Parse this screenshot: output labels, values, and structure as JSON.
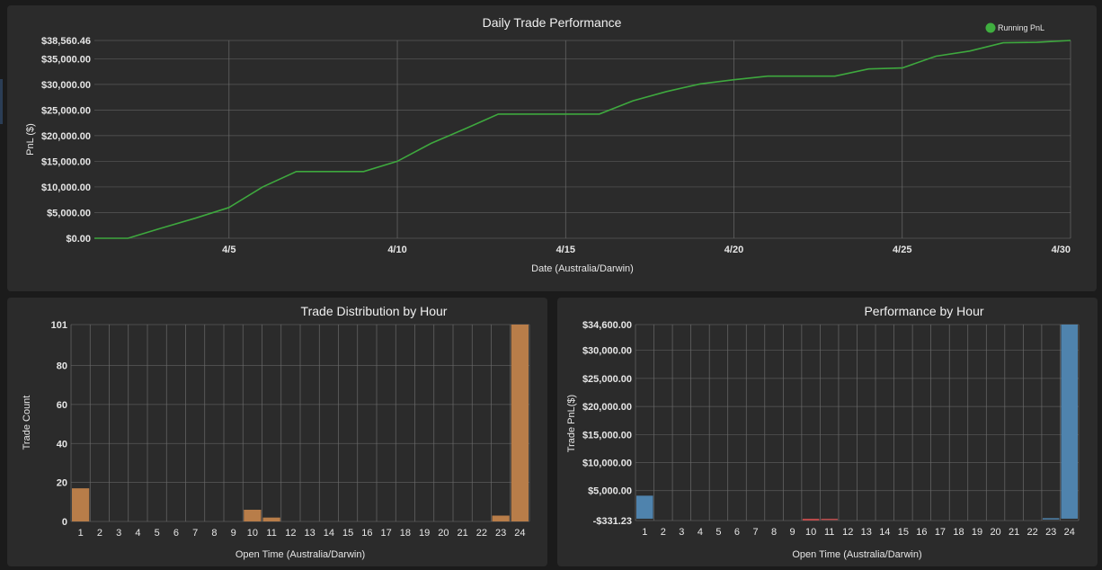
{
  "colors": {
    "panel": "#2b2b2b",
    "line": "#3ea83e",
    "legend_dot": "#3fae3f",
    "bar_count": "#b87d49",
    "bar_positive": "#4f83ad",
    "bar_negative": "#b94a4a"
  },
  "chart_data": [
    {
      "type": "line",
      "title": "Daily Trade Performance",
      "xlabel": "Date (Australia/Darwin)",
      "ylabel": "PnL ($)",
      "series": [
        {
          "name": "Running PnL",
          "x": [
            1,
            2,
            3,
            4,
            5,
            6,
            7,
            8,
            9,
            10,
            11,
            12,
            13,
            14,
            15,
            16,
            17,
            18,
            19,
            20,
            21,
            22,
            23,
            24,
            25,
            26,
            27,
            28,
            29,
            30
          ],
          "values": [
            0,
            0,
            2000,
            3900,
            6000,
            10000,
            13000,
            13000,
            13000,
            15000,
            18500,
            21300,
            24200,
            24200,
            24200,
            24200,
            26800,
            28600,
            30100,
            30900,
            31600,
            31600,
            31600,
            33000,
            33200,
            35500,
            36500,
            38100,
            38200,
            38560.46
          ]
        }
      ],
      "x_ticks": [
        "4/5",
        "4/10",
        "4/15",
        "4/20",
        "4/25",
        "4/30"
      ],
      "x_tick_values": [
        5,
        10,
        15,
        20,
        25,
        30
      ],
      "y_ticks": [
        "$0.00",
        "$5,000.00",
        "$10,000.00",
        "$15,000.00",
        "$20,000.00",
        "$25,000.00",
        "$30,000.00",
        "$35,000.00",
        "$38,560.46"
      ],
      "y_tick_values": [
        0,
        5000,
        10000,
        15000,
        20000,
        25000,
        30000,
        35000,
        38560.46
      ],
      "xlim": [
        1,
        30
      ],
      "ylim": [
        0,
        38560.46
      ],
      "grid": true,
      "legend": "top-right"
    },
    {
      "type": "bar",
      "title": "Trade Distribution by Hour",
      "xlabel": "Open Time (Australia/Darwin)",
      "ylabel": "Trade Count",
      "categories": [
        "1",
        "2",
        "3",
        "4",
        "5",
        "6",
        "7",
        "8",
        "9",
        "10",
        "11",
        "12",
        "13",
        "14",
        "15",
        "16",
        "17",
        "18",
        "19",
        "20",
        "21",
        "22",
        "23",
        "24"
      ],
      "values": [
        17,
        0,
        0,
        0,
        0,
        0,
        0,
        0,
        0,
        6,
        2,
        0,
        0,
        0,
        0,
        0,
        0,
        0,
        0,
        0,
        0,
        0,
        3,
        101
      ],
      "y_ticks": [
        "0",
        "20",
        "40",
        "60",
        "80",
        "101"
      ],
      "y_tick_values": [
        0,
        20,
        40,
        60,
        80,
        101
      ],
      "ylim": [
        0,
        101
      ],
      "grid": true
    },
    {
      "type": "bar",
      "title": "Performance by Hour",
      "xlabel": "Open Time (Australia/Darwin)",
      "ylabel": "Trade PnL($)",
      "categories": [
        "1",
        "2",
        "3",
        "4",
        "5",
        "6",
        "7",
        "8",
        "9",
        "10",
        "11",
        "12",
        "13",
        "14",
        "15",
        "16",
        "17",
        "18",
        "19",
        "20",
        "21",
        "22",
        "23",
        "24"
      ],
      "values": [
        4100,
        0,
        0,
        0,
        0,
        0,
        0,
        0,
        0,
        -331.23,
        -120,
        0,
        0,
        0,
        0,
        0,
        0,
        0,
        0,
        0,
        0,
        0,
        100,
        34600
      ],
      "y_ticks": [
        "-$331.23",
        "$5,000.00",
        "$10,000.00",
        "$15,000.00",
        "$20,000.00",
        "$25,000.00",
        "$30,000.00",
        "$34,600.00"
      ],
      "y_tick_values": [
        -331.23,
        5000,
        10000,
        15000,
        20000,
        25000,
        30000,
        34600
      ],
      "ylim": [
        -331.23,
        34600
      ],
      "grid": true
    }
  ]
}
